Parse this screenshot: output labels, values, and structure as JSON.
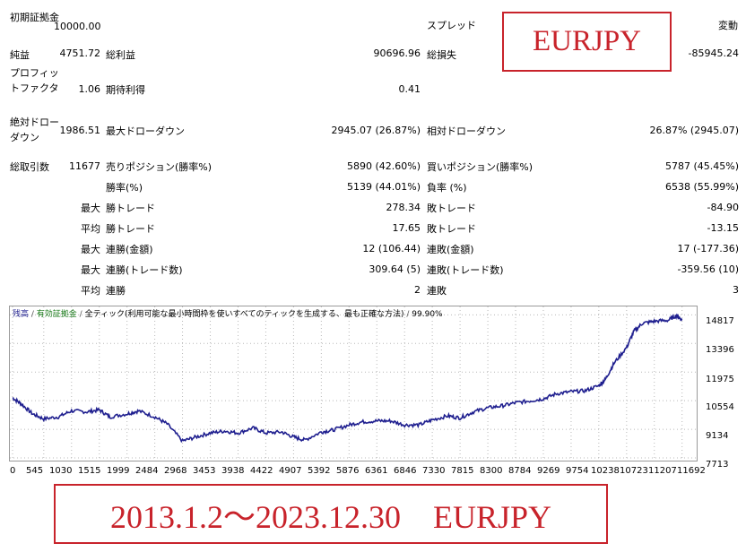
{
  "report": {
    "initial_deposit": {
      "label": "初期証拠金",
      "value": "10000.00"
    },
    "spread": {
      "label": "スプレッド",
      "value": "変動"
    },
    "net_profit": {
      "label": "純益",
      "value": "4751.72"
    },
    "gross_profit": {
      "label": "総利益",
      "value": "90696.96"
    },
    "gross_loss": {
      "label": "総損失",
      "value": "-85945.24"
    },
    "profit_factor": {
      "label": "プロフィットファクタ",
      "value": "1.06"
    },
    "expected_payoff": {
      "label": "期待利得",
      "value": "0.41"
    },
    "abs_drawdown": {
      "label": "絶対ドローダウン",
      "value": "1986.51"
    },
    "max_drawdown": {
      "label": "最大ドローダウン",
      "value": "2945.07 (26.87%)"
    },
    "rel_drawdown": {
      "label": "相対ドローダウン",
      "value": "26.87% (2945.07)"
    },
    "total_trades": {
      "label": "総取引数",
      "value": "11677"
    },
    "short_positions": {
      "label": "売りポジション(勝率%)",
      "value": "5890 (42.60%)"
    },
    "long_positions": {
      "label": "買いポジション(勝率%)",
      "value": "5787 (45.45%)"
    },
    "win_rate": {
      "label": "勝率(%)",
      "value": "5139 (44.01%)"
    },
    "loss_rate": {
      "label": "負率 (%)",
      "value": "6538 (55.99%)"
    },
    "largest": {
      "prefix": "最大",
      "win_label": "勝トレード",
      "win": "278.34",
      "loss_label": "敗トレード",
      "loss": "-84.90"
    },
    "average": {
      "prefix": "平均",
      "win_label": "勝トレード",
      "win": "17.65",
      "loss_label": "敗トレード",
      "loss": "-13.15"
    },
    "max_consec_amount": {
      "prefix": "最大",
      "win_label": "連勝(金額)",
      "win": "12 (106.44)",
      "loss_label": "連敗(金額)",
      "loss": "17 (-177.36)"
    },
    "max_consec_trades": {
      "prefix": "最大",
      "win_label": "連勝(トレード数)",
      "win": "309.64 (5)",
      "loss_label": "連敗(トレード数)",
      "loss": "-359.56 (10)"
    },
    "avg_consec": {
      "prefix": "平均",
      "win_label": "連勝",
      "win": "2",
      "loss_label": "連敗",
      "loss": "3"
    }
  },
  "labels": {
    "symbol_top": "EURJPY",
    "period_banner": "2013.1.2～2023.12.30　EURJPY"
  },
  "colors": {
    "balance_line": "#1f1f8f",
    "equity_legend": "#1a7a1a",
    "banner_red": "#c8232b"
  },
  "chart_data": {
    "type": "line",
    "legend": {
      "balance": "残高",
      "sep1": " / ",
      "equity": "有効証拠金",
      "sep2": " / ",
      "model": "全ティック(利用可能な最小時間枠を使いすべてのティックを生成する、最も正確な方法)",
      "sep3": " / ",
      "quality": "99.90%"
    },
    "y_ticks": [
      "14817",
      "13396",
      "11975",
      "10554",
      "9134",
      "7713"
    ],
    "y_values": [
      14817,
      13396,
      11975,
      10554,
      9134,
      7713
    ],
    "x_ticks": [
      "0",
      "545",
      "1030",
      "1515",
      "1999",
      "2484",
      "2968",
      "3453",
      "3938",
      "4422",
      "4907",
      "5392",
      "5876",
      "6361",
      "6846",
      "7330",
      "7815",
      "8300",
      "8784",
      "9269",
      "9754",
      "10238",
      "10723",
      "11207",
      "11692"
    ],
    "xlim": [
      0,
      11900
    ],
    "ylim": [
      7713,
      15100
    ],
    "series": [
      {
        "x": [
          0,
          150,
          350,
          545,
          800,
          1030,
          1300,
          1515,
          1700,
          1999,
          2200,
          2484,
          2700,
          2968,
          3200,
          3453,
          3700,
          3938,
          4200,
          4422,
          4700,
          4907,
          5100,
          5392,
          5600,
          5876,
          6100,
          6361,
          6600,
          6846,
          7100,
          7330,
          7600,
          7815,
          8050,
          8300,
          8550,
          8784,
          9050,
          9269,
          9500,
          9754,
          10000,
          10238,
          10350,
          10500,
          10723,
          10850,
          11000,
          11207,
          11450,
          11600,
          11692
        ],
        "y": [
          10700,
          10400,
          9900,
          9650,
          9750,
          10050,
          10000,
          10100,
          9750,
          9900,
          10050,
          9750,
          9400,
          8550,
          8750,
          8950,
          9050,
          8950,
          9200,
          8950,
          9000,
          8750,
          8600,
          9000,
          9100,
          9350,
          9500,
          9550,
          9550,
          9350,
          9350,
          9600,
          9800,
          9700,
          10000,
          10200,
          10300,
          10450,
          10550,
          10650,
          10900,
          11000,
          11050,
          11300,
          11600,
          12400,
          13200,
          14000,
          14400,
          14500,
          14550,
          14800,
          14550
        ]
      }
    ]
  }
}
